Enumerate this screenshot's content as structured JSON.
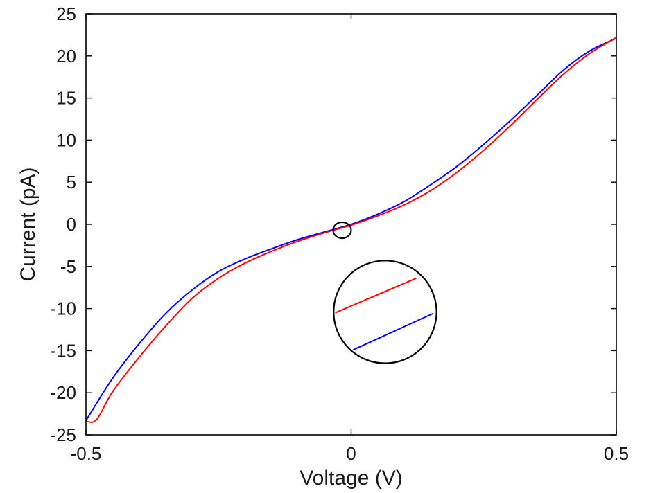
{
  "chart_data": {
    "type": "line",
    "title": "",
    "xlabel": "Voltage (V)",
    "ylabel": "Current (pA)",
    "xlim": [
      -0.5,
      0.5
    ],
    "ylim": [
      -25,
      25
    ],
    "xticks": [
      -0.5,
      0,
      0.5
    ],
    "yticks": [
      25,
      20,
      15,
      10,
      5,
      0,
      -5,
      -10,
      -15,
      -20,
      -25
    ],
    "xtick_labels": [
      "-0.5",
      "0",
      "0.5"
    ],
    "ytick_labels": [
      "25",
      "20",
      "15",
      "10",
      "5",
      "0",
      "-5",
      "-10",
      "-15",
      "-20",
      "-25"
    ],
    "grid": false,
    "series": [
      {
        "color": "#0000ff",
        "x": [
          -0.5,
          -0.45,
          -0.4,
          -0.35,
          -0.3,
          -0.25,
          -0.2,
          -0.15,
          -0.1,
          -0.05,
          0,
          0.05,
          0.1,
          0.15,
          0.2,
          0.25,
          0.3,
          0.35,
          0.4,
          0.45,
          0.5
        ],
        "y": [
          -23.3,
          -18.3,
          -14.2,
          -10.6,
          -7.8,
          -5.6,
          -4.1,
          -2.9,
          -1.8,
          -0.9,
          0,
          1.2,
          2.7,
          4.7,
          6.9,
          9.5,
          12.3,
          15.3,
          18.3,
          20.6,
          22.1
        ]
      },
      {
        "color": "#ff0000",
        "x": [
          -0.5,
          -0.48,
          -0.45,
          -0.4,
          -0.35,
          -0.3,
          -0.25,
          -0.2,
          -0.15,
          -0.1,
          -0.05,
          0,
          0.05,
          0.1,
          0.15,
          0.2,
          0.25,
          0.3,
          0.35,
          0.4,
          0.45,
          0.5
        ],
        "y": [
          -23.4,
          -23.2,
          -19.9,
          -15.8,
          -12.1,
          -8.8,
          -6.4,
          -4.6,
          -3.2,
          -2.0,
          -1.0,
          -0.1,
          1.0,
          2.3,
          4.0,
          6.2,
          8.8,
          11.7,
          14.8,
          17.8,
          20.3,
          22.2
        ]
      }
    ],
    "annotations": [
      {
        "type": "circle",
        "x": -0.017,
        "y": -0.7,
        "rx": 0.017,
        "ry": 0.95
      },
      {
        "type": "zoom-circle",
        "x": 0.064,
        "y": -10.4,
        "rx": 0.097,
        "ry": 6.1,
        "segments": [
          {
            "color": "#ff0000",
            "x1": -0.03,
            "y1": -10.5,
            "x2": 0.123,
            "y2": -6.4
          },
          {
            "color": "#0000ff",
            "x1": 0.004,
            "y1": -14.9,
            "x2": 0.154,
            "y2": -10.6
          }
        ]
      }
    ],
    "colors": {
      "axis": "#000000",
      "text": "#1a1a1a",
      "blue": "#0000ff",
      "red": "#ff0000"
    }
  }
}
